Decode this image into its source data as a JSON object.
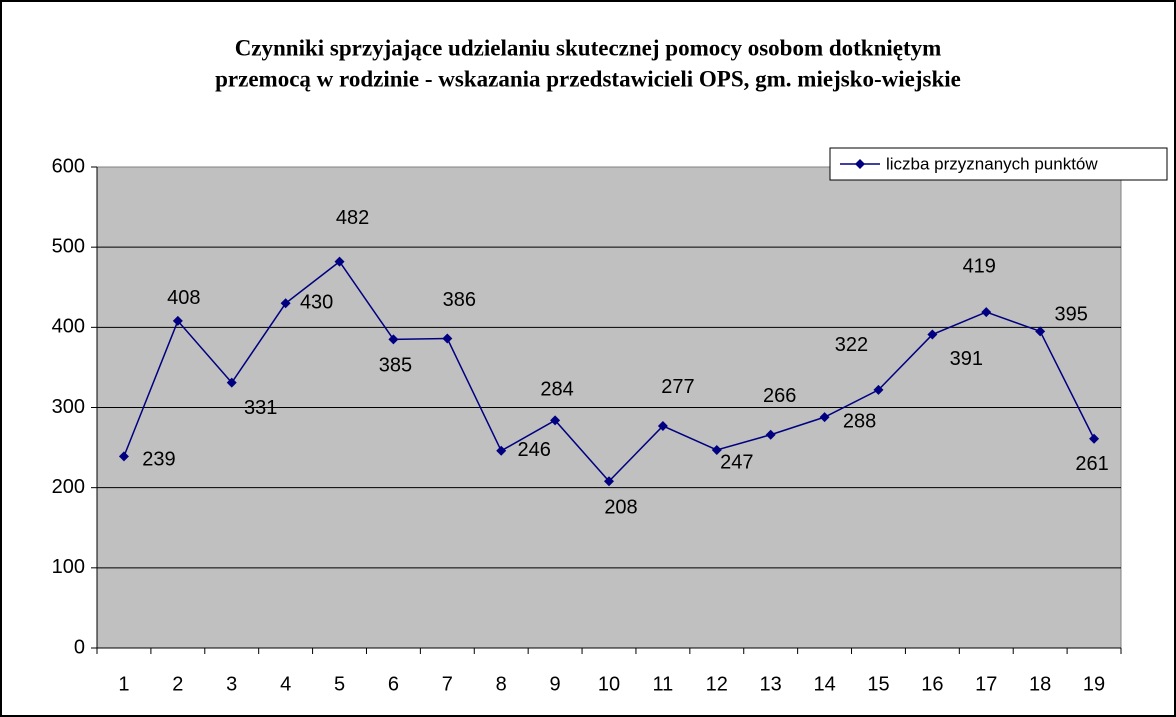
{
  "chart_data": {
    "type": "line",
    "title": [
      "Czynniki sprzyjające udzielaniu skutecznej pomocy osobom dotkniętym",
      "przemocą w rodzinie - wskazania przedstawicieli OPS, gm. miejsko-wiejskie"
    ],
    "categories": [
      "1",
      "2",
      "3",
      "4",
      "5",
      "6",
      "7",
      "8",
      "9",
      "10",
      "11",
      "12",
      "13",
      "14",
      "15",
      "16",
      "17",
      "18",
      "19"
    ],
    "series": [
      {
        "name": "liczba przyznanych punktów",
        "color": "#000080",
        "values": [
          239,
          408,
          331,
          430,
          482,
          385,
          386,
          246,
          284,
          208,
          277,
          247,
          266,
          288,
          322,
          391,
          419,
          395,
          261
        ]
      }
    ],
    "ylim": [
      0,
      600
    ],
    "yticks": [
      0,
      100,
      200,
      300,
      400,
      500,
      600
    ],
    "grid": true,
    "legend": "top-right",
    "plot_color": "#c0c0c0"
  }
}
